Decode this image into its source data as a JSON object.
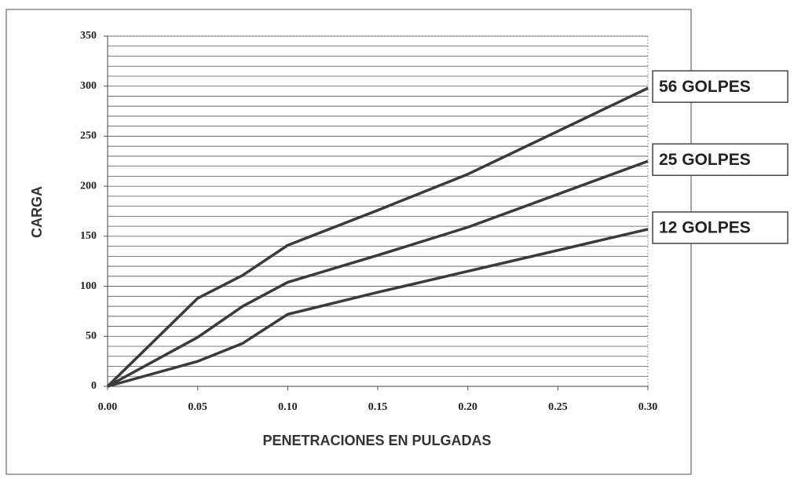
{
  "chart_data": {
    "type": "line",
    "x_label": "PENETRACIONES EN PULGADAS",
    "y_label": "CARGA",
    "x": [
      0,
      0.05,
      0.075,
      0.1,
      0.15,
      0.2,
      0.3
    ],
    "series": [
      {
        "name": "56 GOLPES",
        "color": "#3a3a3a",
        "values": [
          0,
          88,
          111,
          141,
          176,
          212,
          298
        ]
      },
      {
        "name": "25 GOLPES",
        "color": "#3a3a3a",
        "values": [
          0,
          49,
          80,
          104,
          131,
          159,
          225
        ]
      },
      {
        "name": "12 GOLPES",
        "color": "#3a3a3a",
        "values": [
          0,
          25,
          43,
          72,
          94,
          115,
          157
        ]
      }
    ],
    "xlim": [
      0,
      0.3
    ],
    "xticks": [
      {
        "value": 0,
        "label": "0.00"
      },
      {
        "value": 0.05,
        "label": "0.05"
      },
      {
        "value": 0.1,
        "label": "0.10"
      },
      {
        "value": 0.15,
        "label": "0.15"
      },
      {
        "value": 0.2,
        "label": "0.20"
      },
      {
        "value": 0.25,
        "label": "0.25"
      },
      {
        "value": 0.3,
        "label": "0.30"
      }
    ],
    "ylim": [
      0,
      350
    ],
    "yticks": [
      0,
      50,
      100,
      150,
      200,
      250,
      300,
      350
    ],
    "minor_yticks": [
      0,
      10,
      20,
      30,
      40,
      50,
      60,
      70,
      80,
      90,
      100,
      110,
      120,
      130,
      140,
      150,
      160,
      170,
      180,
      190,
      200,
      210,
      220,
      230,
      240,
      250,
      260,
      270,
      280,
      290,
      300,
      310,
      320,
      330,
      340,
      350
    ],
    "grid": true
  }
}
